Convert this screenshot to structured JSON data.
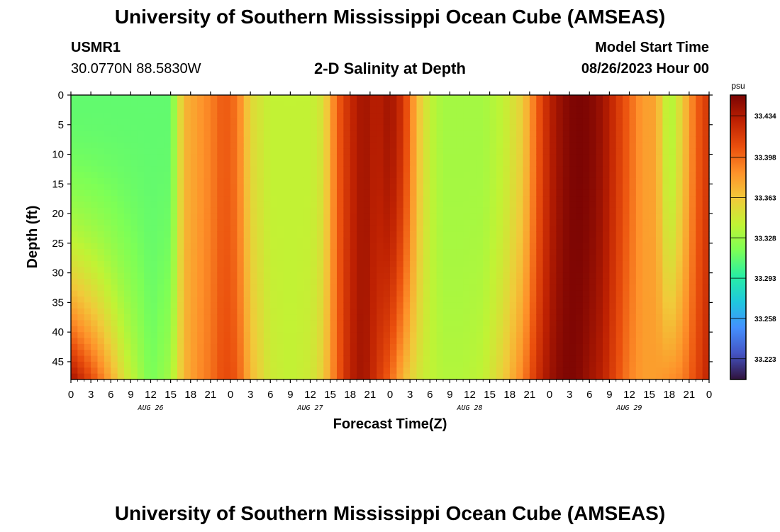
{
  "header": {
    "title": "University of Southern Mississippi Ocean Cube (AMSEAS)",
    "station_id": "USMR1",
    "station_coords": "30.0770N  88.5830W",
    "chart_title": "2-D Salinity at Depth",
    "model_start_label": "Model Start Time",
    "model_start_value": "08/26/2023 Hour 00"
  },
  "footer": {
    "title": "University of Southern Mississippi Ocean Cube (AMSEAS)"
  },
  "chart_data": {
    "type": "heatmap",
    "xlabel": "Forecast Time(Z)",
    "ylabel": "Depth (ft)",
    "x_tick_labels": [
      "0",
      "3",
      "6",
      "9",
      "12",
      "15",
      "18",
      "21",
      "0",
      "3",
      "6",
      "9",
      "12",
      "15",
      "18",
      "21",
      "0",
      "3",
      "6",
      "9",
      "12",
      "15",
      "18",
      "21",
      "0",
      "3",
      "6",
      "9",
      "12",
      "15",
      "18",
      "21",
      "0"
    ],
    "x_range_hours": [
      0,
      96
    ],
    "day_labels": [
      {
        "label": "AUG 26",
        "hour": 12
      },
      {
        "label": "AUG 27",
        "hour": 36
      },
      {
        "label": "AUG 28",
        "hour": 60
      },
      {
        "label": "AUG 29",
        "hour": 84
      }
    ],
    "y_ticks": [
      0,
      5,
      10,
      15,
      20,
      25,
      30,
      35,
      40,
      45
    ],
    "y_range_ft": [
      0,
      48
    ],
    "y_inverted": true,
    "colorbar": {
      "unit": "psu",
      "tick_labels": [
        "33.434",
        "33.398",
        "33.363",
        "33.328",
        "33.293",
        "33.258",
        "33.223"
      ],
      "range": [
        33.205,
        33.452
      ],
      "colors": [
        "#30123b",
        "#4454c4",
        "#4490fe",
        "#1fc8de",
        "#29efa2",
        "#7dff56",
        "#c1f334",
        "#f1ca3a",
        "#fe922a",
        "#ea4f0d",
        "#be2102",
        "#7a0403"
      ]
    },
    "time_series": {
      "time_hours": [
        0,
        4,
        8,
        12,
        15,
        17,
        19,
        21,
        23,
        25,
        27,
        30,
        33,
        36,
        38,
        40,
        42,
        44,
        46,
        48,
        50,
        52,
        54,
        56,
        59,
        62,
        65,
        68,
        70,
        72,
        74,
        76,
        78,
        80,
        82,
        84,
        86,
        88,
        90,
        92,
        94,
        96
      ],
      "surface_psu": [
        33.31,
        33.31,
        33.31,
        33.31,
        33.31,
        33.37,
        33.38,
        33.39,
        33.405,
        33.395,
        33.355,
        33.34,
        33.34,
        33.34,
        33.35,
        33.4,
        33.425,
        33.44,
        33.43,
        33.44,
        33.42,
        33.37,
        33.34,
        33.33,
        33.33,
        33.33,
        33.34,
        33.36,
        33.4,
        33.43,
        33.445,
        33.452,
        33.45,
        33.44,
        33.42,
        33.4,
        33.38,
        33.378,
        33.33,
        33.36,
        33.4,
        33.42
      ],
      "bottom_psu": [
        33.44,
        33.4,
        33.35,
        33.315,
        33.33,
        33.37,
        33.385,
        33.395,
        33.41,
        33.405,
        33.37,
        33.345,
        33.34,
        33.345,
        33.36,
        33.4,
        33.43,
        33.44,
        33.42,
        33.4,
        33.37,
        33.35,
        33.34,
        33.335,
        33.335,
        33.34,
        33.36,
        33.39,
        33.42,
        33.44,
        33.45,
        33.45,
        33.44,
        33.43,
        33.41,
        33.39,
        33.38,
        33.38,
        33.385,
        33.39,
        33.41,
        33.43
      ]
    }
  }
}
